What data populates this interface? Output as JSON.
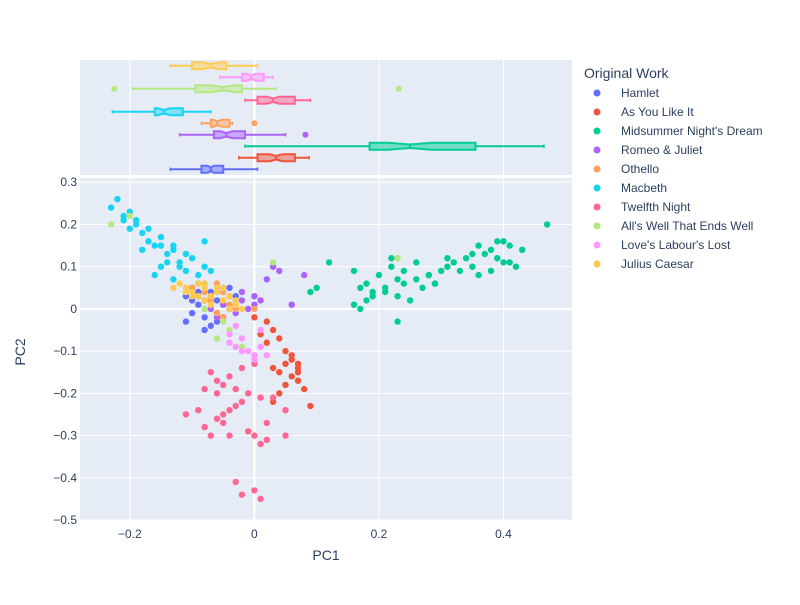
{
  "chart_data": {
    "type": "scatter",
    "subtype": "scatter-with-marginal-boxplots",
    "title": "",
    "xlabel": "PC1",
    "ylabel": "PC2",
    "xlim": [
      -0.28,
      0.51
    ],
    "ylim": [
      -0.5,
      0.31
    ],
    "x_ticks": [
      -0.2,
      0,
      0.2,
      0.4
    ],
    "x_tick_labels": [
      "−0.2",
      "0",
      "0.2",
      "0.4"
    ],
    "y_ticks": [
      -0.5,
      -0.4,
      -0.3,
      -0.2,
      -0.1,
      0,
      0.1,
      0.2,
      0.3
    ],
    "y_tick_labels": [
      "−0.5",
      "−0.4",
      "−0.3",
      "−0.2",
      "−0.1",
      "0",
      "0.1",
      "0.2",
      "0.3"
    ],
    "legend_title": "Original Work",
    "legend_position": "right",
    "grid": true,
    "series": [
      {
        "name": "Hamlet",
        "color": "#636efa",
        "x": [
          -0.11,
          -0.1,
          -0.09,
          -0.08,
          -0.1,
          -0.07,
          -0.06,
          -0.08,
          -0.05,
          -0.09,
          -0.07,
          -0.06,
          -0.04,
          -0.1,
          -0.11,
          -0.08,
          -0.05,
          -0.07,
          -0.09,
          -0.06,
          -0.08,
          -0.03,
          -0.04
        ],
        "y": [
          0.03,
          0.02,
          0.01,
          0.0,
          -0.01,
          0.03,
          0.02,
          -0.02,
          0.01,
          0.04,
          -0.04,
          -0.03,
          0.0,
          0.05,
          -0.03,
          -0.05,
          -0.02,
          0.04,
          0.03,
          -0.01,
          0.02,
          0.03,
          0.05
        ],
        "box": {
          "q1": -0.085,
          "median": -0.07,
          "q3": -0.05,
          "notch_low": -0.075,
          "notch_high": -0.065,
          "whisker_low": -0.135,
          "whisker_high": 0.005,
          "outliers": []
        }
      },
      {
        "name": "As You Like It",
        "color": "#EF553B",
        "x": [
          0.0,
          0.02,
          0.03,
          0.04,
          0.05,
          0.06,
          0.07,
          0.06,
          0.05,
          0.04,
          0.03,
          0.07,
          0.08,
          0.09,
          0.05,
          0.06,
          0.02,
          0.01,
          0.04,
          0.07,
          0.07,
          0.03
        ],
        "y": [
          -0.02,
          -0.03,
          -0.05,
          -0.07,
          -0.1,
          -0.12,
          -0.14,
          -0.16,
          -0.18,
          -0.2,
          -0.22,
          -0.17,
          -0.19,
          -0.23,
          -0.13,
          -0.11,
          -0.08,
          -0.06,
          -0.15,
          -0.15,
          -0.13,
          -0.14
        ],
        "box": {
          "q1": 0.005,
          "median": 0.035,
          "q3": 0.065,
          "notch_low": 0.025,
          "notch_high": 0.045,
          "whisker_low": -0.025,
          "whisker_high": 0.088,
          "outliers": []
        }
      },
      {
        "name": "Midsummer Night's Dream",
        "color": "#00cc96",
        "x": [
          0.16,
          0.17,
          0.18,
          0.19,
          0.2,
          0.21,
          0.22,
          0.23,
          0.24,
          0.25,
          0.26,
          0.27,
          0.28,
          0.29,
          0.3,
          0.31,
          0.32,
          0.33,
          0.34,
          0.35,
          0.36,
          0.37,
          0.38,
          0.39,
          0.4,
          0.41,
          0.42,
          0.43,
          0.47,
          0.18,
          0.19,
          0.24,
          0.22,
          0.26,
          0.28,
          0.31,
          0.35,
          0.39,
          0.41,
          0.12,
          0.1,
          0.09,
          0.17,
          0.16,
          0.23,
          0.29,
          0.36,
          0.38,
          0.4,
          0.21,
          0.23
        ],
        "y": [
          0.09,
          0.05,
          0.06,
          0.04,
          0.08,
          0.05,
          0.1,
          0.03,
          0.06,
          0.02,
          0.07,
          0.05,
          0.08,
          0.06,
          0.09,
          0.1,
          0.11,
          0.09,
          0.12,
          0.1,
          0.15,
          0.13,
          0.14,
          0.12,
          0.16,
          0.11,
          0.1,
          0.14,
          0.2,
          0.02,
          0.03,
          0.09,
          0.12,
          0.11,
          0.08,
          0.12,
          0.13,
          0.16,
          0.15,
          0.11,
          0.05,
          0.04,
          0.0,
          0.01,
          -0.03,
          0.06,
          0.08,
          0.09,
          0.11,
          0.04,
          0.07
        ],
        "box": {
          "q1": 0.185,
          "median": 0.25,
          "q3": 0.355,
          "notch_low": 0.215,
          "notch_high": 0.285,
          "whisker_low": -0.015,
          "whisker_high": 0.465,
          "outliers": []
        }
      },
      {
        "name": "Romeo & Juliet",
        "color": "#ab63fa",
        "x": [
          -0.1,
          -0.09,
          -0.08,
          -0.07,
          -0.06,
          -0.05,
          -0.04,
          -0.03,
          -0.02,
          -0.01,
          0.0,
          0.01,
          0.02,
          0.03,
          0.04,
          0.06,
          0.08,
          -0.06,
          -0.04,
          -0.02,
          0.0,
          -0.08,
          -0.05,
          -0.03
        ],
        "y": [
          0.05,
          0.03,
          0.02,
          0.0,
          0.04,
          0.01,
          0.03,
          -0.01,
          0.02,
          0.0,
          0.03,
          0.02,
          0.07,
          0.1,
          0.09,
          0.01,
          0.08,
          -0.02,
          0.0,
          0.04,
          0.01,
          0.06,
          0.05,
          0.02
        ],
        "box": {
          "q1": -0.065,
          "median": -0.045,
          "q3": -0.015,
          "notch_low": -0.055,
          "notch_high": -0.035,
          "whisker_low": -0.12,
          "whisker_high": 0.05,
          "outliers": [
            0.082
          ]
        }
      },
      {
        "name": "Othello",
        "color": "#FFA15A",
        "x": [
          -0.1,
          -0.08,
          -0.07,
          -0.06,
          -0.05,
          -0.04,
          -0.03,
          -0.06,
          -0.05,
          -0.07,
          -0.04,
          -0.05,
          -0.06,
          -0.03,
          -0.08,
          0.0
        ],
        "y": [
          0.05,
          0.04,
          0.03,
          0.06,
          0.02,
          0.01,
          0.0,
          -0.01,
          0.04,
          0.02,
          0.03,
          -0.02,
          0.05,
          0.01,
          0.02,
          0.0
        ],
        "box": {
          "q1": -0.07,
          "median": -0.06,
          "q3": -0.04,
          "notch_low": -0.065,
          "notch_high": -0.052,
          "whisker_low": -0.085,
          "whisker_high": -0.035,
          "outliers": [
            0.0
          ]
        }
      },
      {
        "name": "Macbeth",
        "color": "#19d3f3",
        "x": [
          -0.23,
          -0.22,
          -0.21,
          -0.2,
          -0.19,
          -0.18,
          -0.17,
          -0.16,
          -0.15,
          -0.14,
          -0.13,
          -0.12,
          -0.11,
          -0.1,
          -0.09,
          -0.08,
          -0.07,
          -0.19,
          -0.17,
          -0.15,
          -0.13,
          -0.11,
          -0.2,
          -0.18,
          -0.16,
          -0.14,
          -0.12,
          -0.09,
          -0.21,
          -0.15,
          -0.13,
          -0.08
        ],
        "y": [
          0.24,
          0.26,
          0.22,
          0.23,
          0.2,
          0.18,
          0.19,
          0.15,
          0.17,
          0.13,
          0.15,
          0.11,
          0.09,
          0.12,
          0.08,
          0.1,
          0.09,
          0.21,
          0.16,
          0.1,
          0.07,
          0.13,
          0.19,
          0.14,
          0.08,
          0.11,
          0.1,
          0.06,
          0.21,
          0.15,
          0.14,
          0.16
        ],
        "box": {
          "q1": -0.16,
          "median": -0.145,
          "q3": -0.115,
          "notch_low": -0.155,
          "notch_high": -0.135,
          "whisker_low": -0.228,
          "whisker_high": -0.07,
          "outliers": []
        }
      },
      {
        "name": "Twelfth Night",
        "color": "#FF6692",
        "x": [
          -0.11,
          -0.09,
          -0.08,
          -0.07,
          -0.06,
          -0.05,
          -0.04,
          -0.03,
          -0.02,
          -0.01,
          0.0,
          0.01,
          0.02,
          0.03,
          0.05,
          -0.06,
          -0.04,
          -0.02,
          0.0,
          -0.07,
          -0.05,
          -0.03,
          -0.01,
          0.01,
          -0.03,
          -0.02,
          0.01,
          -0.08,
          -0.06,
          -0.04,
          -0.05,
          0.0,
          0.02,
          0.05
        ],
        "y": [
          -0.25,
          -0.24,
          -0.28,
          -0.3,
          -0.26,
          -0.25,
          -0.24,
          -0.23,
          -0.22,
          -0.29,
          -0.3,
          -0.32,
          -0.27,
          -0.21,
          -0.3,
          -0.17,
          -0.16,
          -0.14,
          -0.13,
          -0.15,
          -0.18,
          -0.19,
          -0.2,
          -0.21,
          -0.41,
          -0.44,
          -0.45,
          -0.19,
          -0.2,
          -0.3,
          -0.27,
          -0.43,
          -0.31,
          -0.24
        ],
        "box": {
          "q1": 0.005,
          "median": 0.03,
          "q3": 0.065,
          "notch_low": 0.02,
          "notch_high": 0.04,
          "whisker_low": -0.015,
          "whisker_high": 0.09,
          "outliers": []
        }
      },
      {
        "name": "All's Well That Ends Well",
        "color": "#B6E880",
        "x": [
          -0.23,
          -0.2,
          -0.06,
          -0.04,
          -0.02,
          0.03,
          0.23,
          -0.05,
          -0.08
        ],
        "y": [
          0.2,
          0.22,
          -0.07,
          -0.05,
          -0.09,
          0.11,
          0.12,
          -0.03,
          0.0
        ],
        "box": {
          "q1": -0.095,
          "median": -0.05,
          "q3": -0.02,
          "notch_low": -0.07,
          "notch_high": -0.03,
          "whisker_low": -0.195,
          "whisker_high": 0.035,
          "outliers": [
            -0.225,
            0.232
          ]
        }
      },
      {
        "name": "Love's Labour's Lost",
        "color": "#FF97FF",
        "x": [
          -0.04,
          -0.03,
          -0.02,
          -0.01,
          0.0,
          0.01,
          0.02,
          -0.03,
          -0.02,
          0.01,
          -0.04,
          0.0
        ],
        "y": [
          -0.06,
          -0.09,
          -0.1,
          -0.1,
          -0.11,
          -0.09,
          -0.11,
          -0.04,
          -0.07,
          -0.05,
          -0.08,
          -0.12
        ],
        "box": {
          "q1": -0.02,
          "median": -0.005,
          "q3": 0.015,
          "notch_low": -0.012,
          "notch_high": 0.002,
          "whisker_low": -0.055,
          "whisker_high": 0.03,
          "outliers": []
        }
      },
      {
        "name": "Julius Caesar",
        "color": "#FECB52",
        "x": [
          -0.12,
          -0.11,
          -0.1,
          -0.09,
          -0.08,
          -0.07,
          -0.06,
          -0.05,
          -0.04,
          -0.03,
          -0.02,
          -0.1,
          -0.08,
          -0.06,
          -0.04,
          -0.11,
          -0.09,
          -0.07,
          -0.05,
          -0.13,
          -0.03,
          -0.08
        ],
        "y": [
          0.06,
          0.05,
          0.04,
          0.06,
          0.05,
          0.03,
          0.04,
          0.02,
          0.03,
          0.01,
          0.0,
          0.03,
          0.02,
          0.05,
          0.0,
          0.04,
          0.03,
          0.01,
          0.05,
          0.05,
          0.02,
          0.06
        ],
        "box": {
          "q1": -0.1,
          "median": -0.07,
          "q3": -0.045,
          "notch_low": -0.085,
          "notch_high": -0.055,
          "whisker_low": -0.135,
          "whisker_high": 0.005,
          "outliers": []
        }
      }
    ]
  }
}
